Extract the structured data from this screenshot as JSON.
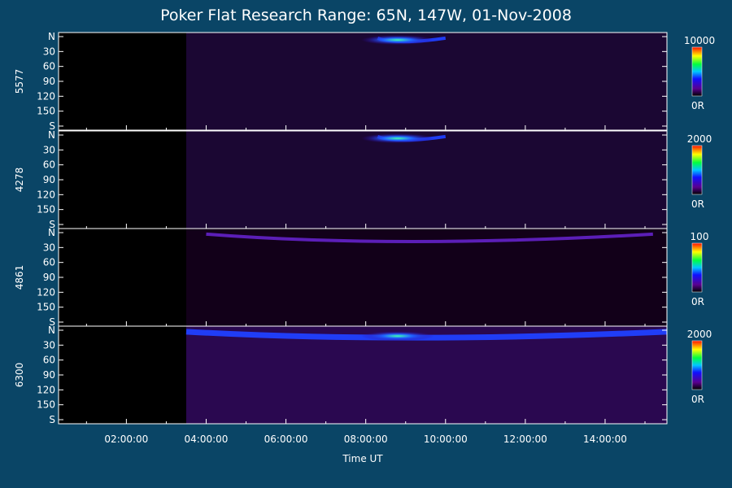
{
  "chart_data": {
    "type": "heatmap",
    "title": "Poker Flat Research Range: 65N, 147W, 01-Nov-2008",
    "xlabel": "Time UT",
    "x_ticks": [
      "02:00:00",
      "04:00:00",
      "06:00:00",
      "08:00:00",
      "10:00:00",
      "12:00:00",
      "14:00:00"
    ],
    "x_range_hours": [
      0.3,
      15.55
    ],
    "y_ticks": [
      "N",
      "30",
      "60",
      "90",
      "120",
      "150",
      "S"
    ],
    "y_range_deg": [
      0,
      180
    ],
    "panels": [
      {
        "ylabel": "5577",
        "cbar_max": "10000",
        "cbar_min": "0R",
        "data_start_hour": 3.5,
        "bright_band": {
          "from_hour": 8.3,
          "to_hour": 10.0,
          "peak_hour": 8.8,
          "peak_deg": 10
        }
      },
      {
        "ylabel": "4278",
        "cbar_max": "2000",
        "cbar_min": "0R",
        "data_start_hour": 3.5,
        "bright_band": {
          "from_hour": 8.3,
          "to_hour": 10.0,
          "peak_hour": 8.8,
          "peak_deg": 10
        }
      },
      {
        "ylabel": "4861",
        "cbar_max": "100",
        "cbar_min": "0R",
        "data_start_hour": 3.5,
        "bright_band": {
          "from_hour": 4.0,
          "to_hour": 15.2,
          "peak_hour": 8.8,
          "peak_deg": 18
        }
      },
      {
        "ylabel": "6300",
        "cbar_max": "2000",
        "cbar_min": "0R",
        "data_start_hour": 3.5,
        "bright_band": {
          "from_hour": 3.5,
          "to_hour": 15.55,
          "peak_hour": 8.8,
          "peak_deg": 15
        }
      }
    ]
  }
}
